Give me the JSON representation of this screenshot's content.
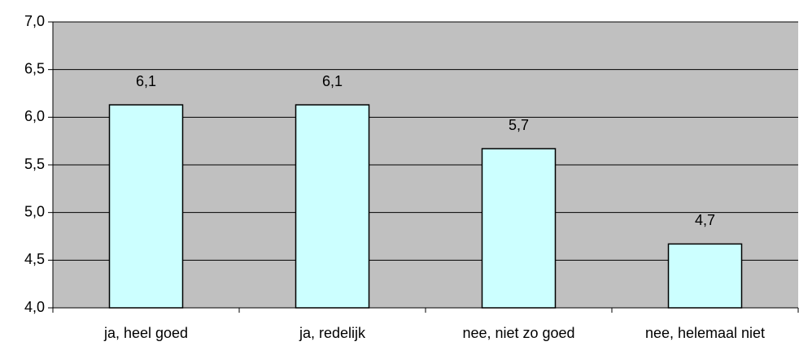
{
  "chart_data": {
    "type": "bar",
    "categories": [
      "ja, heel goed",
      "ja, redelijk",
      "nee, niet zo goed",
      "nee, helemaal niet"
    ],
    "values": [
      6.13,
      6.13,
      5.67,
      4.67
    ],
    "value_labels": [
      "6,1",
      "6,1",
      "5,7",
      "4,7"
    ],
    "color": "#ccffff",
    "background": "#c0c0c0",
    "ylim": [
      4.0,
      7.0
    ],
    "yticks": [
      {
        "value": 4.0,
        "label": "4,0"
      },
      {
        "value": 4.5,
        "label": "4,5"
      },
      {
        "value": 5.0,
        "label": "5,0"
      },
      {
        "value": 5.5,
        "label": "5,5"
      },
      {
        "value": 6.0,
        "label": "6,0"
      },
      {
        "value": 6.5,
        "label": "6,5"
      },
      {
        "value": 7.0,
        "label": "7,0"
      }
    ],
    "grid": true
  }
}
